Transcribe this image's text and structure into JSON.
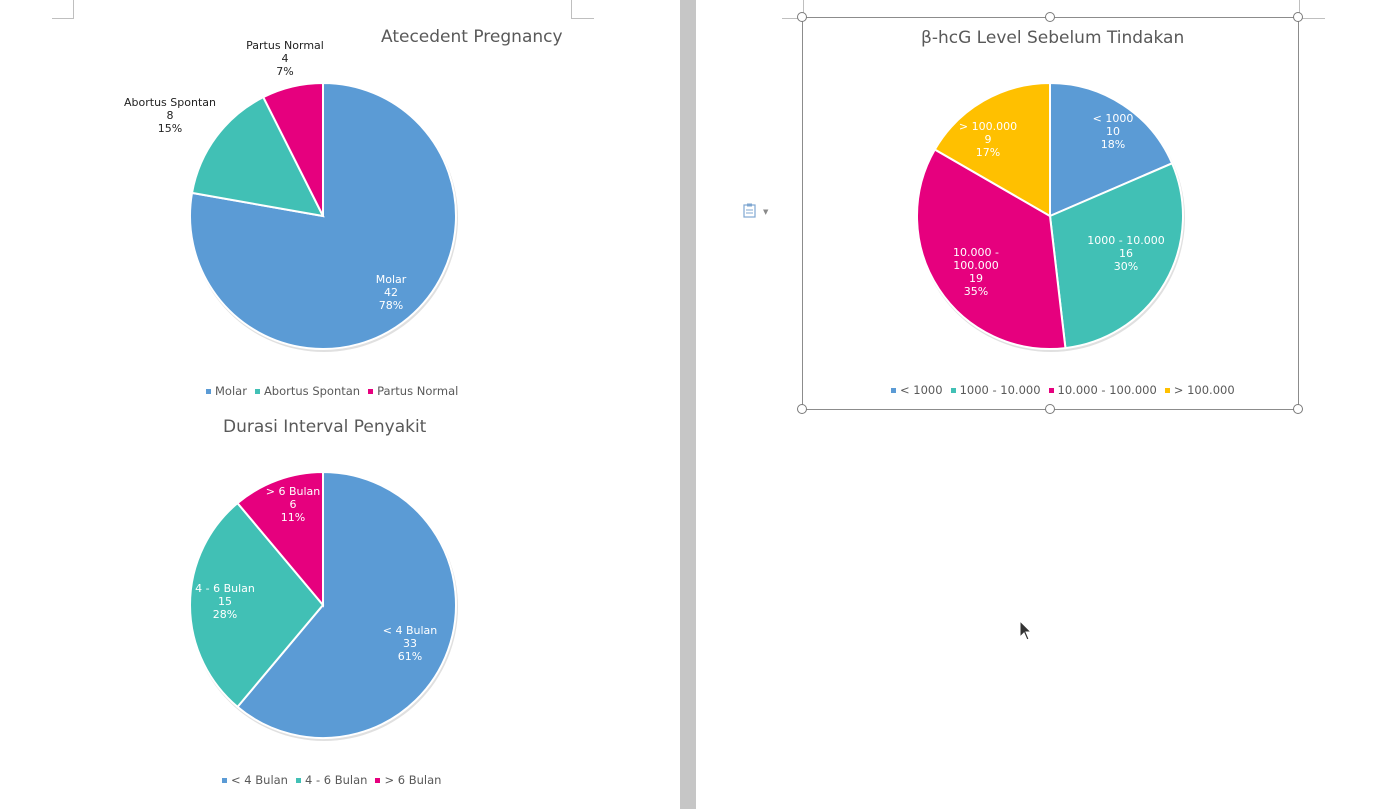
{
  "colors": {
    "blue": "#5b9bd5",
    "teal": "#41c0b5",
    "magenta": "#e6007e",
    "gold": "#ffc000"
  },
  "chart_data": [
    {
      "type": "pie",
      "title": "Atecedent Pregnancy",
      "categories": [
        "Molar",
        "Abortus Spontan",
        "Partus Normal"
      ],
      "values": [
        42,
        8,
        4
      ],
      "percents": [
        "78%",
        "15%",
        "7%"
      ],
      "colors": [
        "#5b9bd5",
        "#41c0b5",
        "#e6007e"
      ],
      "legend": "bottom"
    },
    {
      "type": "pie",
      "title": "Durasi Interval Penyakit",
      "categories": [
        "< 4 Bulan",
        "4 - 6 Bulan",
        "> 6 Bulan"
      ],
      "values": [
        33,
        15,
        6
      ],
      "percents": [
        "61%",
        "28%",
        "11%"
      ],
      "colors": [
        "#5b9bd5",
        "#41c0b5",
        "#e6007e"
      ],
      "legend": "bottom"
    },
    {
      "type": "pie",
      "title": "β-hcG Level Sebelum Tindakan",
      "categories": [
        "< 1000",
        "1000 - 10.000",
        "10.000 - 100.000",
        "> 100.000"
      ],
      "values": [
        10,
        16,
        19,
        9
      ],
      "percents": [
        "18%",
        "30%",
        "35%",
        "17%"
      ],
      "colors": [
        "#5b9bd5",
        "#41c0b5",
        "#e6007e",
        "#ffc000"
      ],
      "legend": "bottom",
      "selected": true
    }
  ],
  "icons": {
    "paste_options": "clipboard-icon",
    "dropdown": "chevron-down-icon",
    "cursor": "mouse-pointer-icon"
  }
}
